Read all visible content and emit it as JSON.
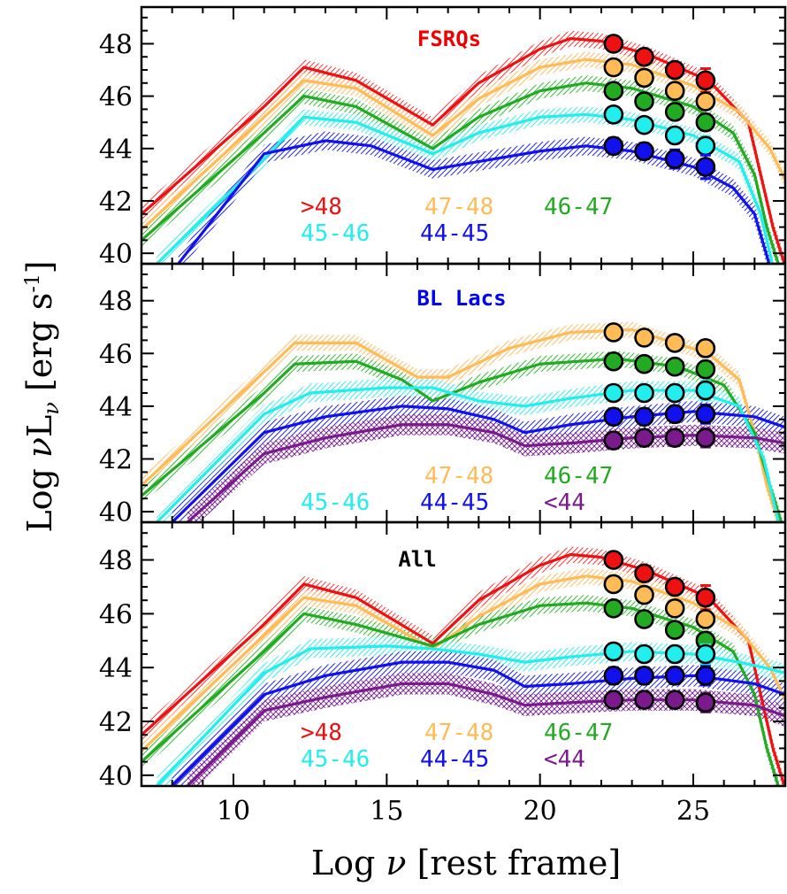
{
  "figure": {
    "xlabel_parts": [
      "Log ",
      "ν",
      " [rest frame]"
    ],
    "ylabel_parts": [
      "Log ",
      "ν",
      "L",
      "ν",
      " [erg s",
      "-1",
      "]"
    ]
  },
  "chart_data": [
    {
      "type": "line",
      "title": "FSRQs",
      "title_color": "#ee0000",
      "xlim": [
        7,
        28
      ],
      "ylim": [
        39.6,
        49.4
      ],
      "xticks": [
        10,
        15,
        20,
        25
      ],
      "yticks": [
        40,
        42,
        44,
        46,
        48
      ],
      "series": [
        {
          "name": ">48",
          "color": "#ee1111",
          "hatch": "#ee4444",
          "x": [
            7,
            11,
            12.3,
            14,
            16.5,
            18,
            20,
            21,
            22,
            23.5,
            25.5,
            26.8,
            27.2,
            27.6,
            28
          ],
          "y": [
            41.5,
            45.6,
            47.1,
            46.6,
            44.9,
            46.5,
            47.8,
            48.2,
            48.1,
            47.6,
            46.6,
            45.0,
            43.0,
            41.0,
            39.5
          ],
          "band": 0.6,
          "points": [
            {
              "x": 22.4,
              "y": 48.0,
              "err": 0.15
            },
            {
              "x": 23.4,
              "y": 47.5,
              "err": 0.2
            },
            {
              "x": 24.4,
              "y": 47.0,
              "err": 0.25
            },
            {
              "x": 25.4,
              "y": 46.6,
              "err": 0.45
            }
          ]
        },
        {
          "name": "47-48",
          "color": "#ffbb55",
          "hatch": "#ffc070",
          "x": [
            7,
            11,
            12.3,
            14,
            16.5,
            18,
            20,
            21.5,
            23,
            25,
            26.5,
            27.5,
            28
          ],
          "y": [
            40.9,
            45.2,
            46.6,
            46.3,
            44.5,
            45.9,
            47.1,
            47.4,
            47.2,
            46.4,
            45.4,
            44.0,
            42.8
          ],
          "band": 0.6,
          "points": [
            {
              "x": 22.4,
              "y": 47.1,
              "err": 0.2
            },
            {
              "x": 23.4,
              "y": 46.7,
              "err": 0.2
            },
            {
              "x": 24.4,
              "y": 46.2,
              "err": 0.25
            },
            {
              "x": 25.4,
              "y": 45.8,
              "err": 0.3
            }
          ]
        },
        {
          "name": "46-47",
          "color": "#22aa22",
          "hatch": "#44bb44",
          "x": [
            7,
            11,
            12.3,
            14,
            16.5,
            18,
            20,
            21.5,
            23,
            25,
            26.3,
            27,
            27.4,
            27.8
          ],
          "y": [
            40.5,
            44.6,
            46.0,
            45.6,
            44.0,
            45.2,
            46.2,
            46.5,
            46.3,
            45.6,
            44.6,
            43.0,
            41.0,
            39.5
          ],
          "band": 0.6,
          "points": [
            {
              "x": 22.4,
              "y": 46.2,
              "err": 0.2
            },
            {
              "x": 23.4,
              "y": 45.8,
              "err": 0.2
            },
            {
              "x": 24.4,
              "y": 45.4,
              "err": 0.25
            },
            {
              "x": 25.4,
              "y": 45.0,
              "err": 0.3
            }
          ]
        },
        {
          "name": "45-46",
          "color": "#22eeee",
          "hatch": "#44eeee",
          "x": [
            7.5,
            11,
            12.3,
            14,
            16.5,
            18,
            20,
            21.5,
            23,
            25,
            26.5,
            27.2,
            27.6
          ],
          "y": [
            39.6,
            43.6,
            45.2,
            45.0,
            43.8,
            44.6,
            45.2,
            45.3,
            45.1,
            44.5,
            43.5,
            41.5,
            39.5
          ],
          "band": 0.6,
          "points": [
            {
              "x": 22.4,
              "y": 45.3,
              "err": 0.25
            },
            {
              "x": 23.4,
              "y": 44.9,
              "err": 0.25
            },
            {
              "x": 24.4,
              "y": 44.5,
              "err": 0.3
            },
            {
              "x": 25.4,
              "y": 44.1,
              "err": 0.35
            }
          ]
        },
        {
          "name": "44-45",
          "color": "#1111ee",
          "hatch": "#3333cc",
          "x": [
            8.2,
            11,
            13,
            14.5,
            16.5,
            18,
            20,
            21.5,
            23,
            25,
            26.3,
            27,
            27.5
          ],
          "y": [
            39.6,
            43.8,
            44.3,
            44.1,
            43.2,
            43.5,
            43.9,
            44.1,
            43.9,
            43.3,
            42.5,
            41.5,
            39.5
          ],
          "band": 0.7,
          "points": [
            {
              "x": 22.4,
              "y": 44.1,
              "err": 0.3
            },
            {
              "x": 23.4,
              "y": 43.9,
              "err": 0.3
            },
            {
              "x": 24.4,
              "y": 43.6,
              "err": 0.35
            },
            {
              "x": 25.4,
              "y": 43.3,
              "err": 0.45
            }
          ]
        }
      ]
    },
    {
      "type": "line",
      "title": "BL Lacs",
      "title_color": "#0000ee",
      "xlim": [
        7,
        28
      ],
      "ylim": [
        39.6,
        49.4
      ],
      "xticks": [
        10,
        15,
        20,
        25
      ],
      "yticks": [
        40,
        42,
        44,
        46,
        48
      ],
      "series": [
        {
          "name": "47-48",
          "color": "#ffbb55",
          "hatch": "#ffc070",
          "x": [
            7,
            11,
            12,
            14,
            16,
            17,
            19,
            21,
            23,
            25.5,
            26.5,
            27,
            27.4,
            27.8
          ],
          "y": [
            41.0,
            45.3,
            46.4,
            46.4,
            45.1,
            45.1,
            46.2,
            46.8,
            46.9,
            46.0,
            45.0,
            43.0,
            41.0,
            39.5
          ],
          "band": 0.6,
          "points": [
            {
              "x": 22.4,
              "y": 46.8,
              "err": 0.2
            },
            {
              "x": 23.4,
              "y": 46.6,
              "err": 0.2
            },
            {
              "x": 24.4,
              "y": 46.4,
              "err": 0.25
            },
            {
              "x": 25.4,
              "y": 46.2,
              "err": 0.3
            }
          ]
        },
        {
          "name": "46-47",
          "color": "#22aa22",
          "hatch": "#44bb44",
          "x": [
            7,
            11,
            12,
            14,
            15.5,
            16.5,
            18,
            20,
            22.5,
            24.5,
            26,
            27,
            27.5,
            27.9
          ],
          "y": [
            40.6,
            44.5,
            45.6,
            45.7,
            45.0,
            44.2,
            44.9,
            45.6,
            45.8,
            45.5,
            44.8,
            43.0,
            41.0,
            39.5
          ],
          "band": 0.6,
          "points": [
            {
              "x": 22.4,
              "y": 45.7,
              "err": 0.2
            },
            {
              "x": 23.4,
              "y": 45.6,
              "err": 0.2
            },
            {
              "x": 24.4,
              "y": 45.5,
              "err": 0.25
            },
            {
              "x": 25.4,
              "y": 45.4,
              "err": 0.3
            }
          ]
        },
        {
          "name": "45-46",
          "color": "#22eeee",
          "hatch": "#44eeee",
          "x": [
            7.5,
            11,
            12.5,
            15,
            16.5,
            18,
            19.5,
            21,
            23,
            25,
            26.5,
            27.3,
            27.8
          ],
          "y": [
            39.6,
            43.7,
            44.5,
            44.7,
            44.7,
            44.2,
            44.0,
            44.3,
            44.6,
            44.6,
            44.0,
            42.0,
            39.5
          ],
          "band": 0.7,
          "points": [
            {
              "x": 22.4,
              "y": 44.5,
              "err": 0.25
            },
            {
              "x": 23.4,
              "y": 44.5,
              "err": 0.25
            },
            {
              "x": 24.4,
              "y": 44.5,
              "err": 0.3
            },
            {
              "x": 25.4,
              "y": 44.6,
              "err": 0.35
            }
          ]
        },
        {
          "name": "44-45",
          "color": "#1111ee",
          "hatch": "#3333cc",
          "x": [
            8,
            11,
            13,
            15.5,
            17,
            18.5,
            19.5,
            21,
            23,
            25,
            27,
            28
          ],
          "y": [
            39.6,
            43.0,
            43.6,
            44.0,
            43.9,
            43.5,
            43.0,
            43.3,
            43.6,
            43.8,
            43.6,
            43.2
          ],
          "band": 0.8,
          "points": [
            {
              "x": 22.4,
              "y": 43.6,
              "err": 0.3
            },
            {
              "x": 23.4,
              "y": 43.6,
              "err": 0.3
            },
            {
              "x": 24.4,
              "y": 43.7,
              "err": 0.3
            },
            {
              "x": 25.4,
              "y": 43.7,
              "err": 0.35
            }
          ]
        },
        {
          "name": "<44",
          "color": "#7a1a8c",
          "hatch": "#7a2a90",
          "x": [
            8.5,
            11,
            13,
            15.5,
            17,
            18.5,
            19.5,
            21,
            23,
            25,
            27,
            28
          ],
          "y": [
            39.6,
            42.2,
            42.8,
            43.3,
            43.3,
            43.0,
            42.5,
            42.6,
            42.8,
            42.9,
            42.8,
            42.6
          ],
          "band": 0.8,
          "points": [
            {
              "x": 22.4,
              "y": 42.7,
              "err": 0.3
            },
            {
              "x": 23.4,
              "y": 42.8,
              "err": 0.3
            },
            {
              "x": 24.4,
              "y": 42.8,
              "err": 0.3
            },
            {
              "x": 25.4,
              "y": 42.8,
              "err": 0.35
            }
          ]
        }
      ]
    },
    {
      "type": "line",
      "title": "All",
      "title_color": "#000000",
      "xlim": [
        7,
        28
      ],
      "ylim": [
        39.6,
        49.4
      ],
      "xticks": [
        10,
        15,
        20,
        25
      ],
      "yticks": [
        40,
        42,
        44,
        46,
        48
      ],
      "series": [
        {
          "name": ">48",
          "color": "#ee1111",
          "hatch": "#ee4444",
          "x": [
            7,
            11,
            12.3,
            14,
            16.5,
            18,
            20,
            21,
            22,
            23.5,
            25.5,
            26.8,
            27.2,
            27.6,
            28
          ],
          "y": [
            41.5,
            45.6,
            47.1,
            46.6,
            44.9,
            46.5,
            47.8,
            48.2,
            48.1,
            47.6,
            46.6,
            45.0,
            43.0,
            41.0,
            39.5
          ],
          "band": 0.6,
          "points": [
            {
              "x": 22.4,
              "y": 48.0,
              "err": 0.15
            },
            {
              "x": 23.4,
              "y": 47.5,
              "err": 0.2
            },
            {
              "x": 24.4,
              "y": 47.0,
              "err": 0.25
            },
            {
              "x": 25.4,
              "y": 46.6,
              "err": 0.45
            }
          ]
        },
        {
          "name": "47-48",
          "color": "#ffbb55",
          "hatch": "#ffc070",
          "x": [
            7,
            11,
            12.3,
            14,
            16.5,
            18,
            20,
            21.5,
            23,
            25,
            26.5,
            27.5,
            28
          ],
          "y": [
            40.9,
            45.2,
            46.6,
            46.3,
            44.7,
            45.9,
            47.1,
            47.4,
            47.2,
            46.4,
            45.4,
            44.0,
            42.8
          ],
          "band": 0.6,
          "points": [
            {
              "x": 22.4,
              "y": 47.1,
              "err": 0.2
            },
            {
              "x": 23.4,
              "y": 46.7,
              "err": 0.2
            },
            {
              "x": 24.4,
              "y": 46.2,
              "err": 0.25
            },
            {
              "x": 25.4,
              "y": 45.8,
              "err": 0.3
            }
          ]
        },
        {
          "name": "46-47",
          "color": "#22aa22",
          "hatch": "#44bb44",
          "x": [
            7,
            11,
            12.3,
            14,
            16.5,
            18,
            20,
            21.5,
            23,
            25,
            26.3,
            27,
            27.4,
            27.8
          ],
          "y": [
            40.5,
            44.6,
            46.0,
            45.6,
            44.8,
            45.6,
            46.3,
            46.4,
            46.2,
            45.5,
            44.6,
            43.0,
            41.0,
            39.5
          ],
          "band": 0.6,
          "points": [
            {
              "x": 22.4,
              "y": 46.2,
              "err": 0.2
            },
            {
              "x": 23.4,
              "y": 45.8,
              "err": 0.2
            },
            {
              "x": 24.4,
              "y": 45.4,
              "err": 0.25
            },
            {
              "x": 25.4,
              "y": 45.0,
              "err": 0.3
            }
          ]
        },
        {
          "name": "45-46",
          "color": "#22eeee",
          "hatch": "#44eeee",
          "x": [
            7.5,
            11,
            12.5,
            15,
            16.5,
            18,
            19.5,
            21,
            23,
            25,
            26.5,
            27.3,
            28
          ],
          "y": [
            39.6,
            43.8,
            44.7,
            44.8,
            44.7,
            44.5,
            44.2,
            44.4,
            44.6,
            44.5,
            44.2,
            44.0,
            43.8
          ],
          "band": 0.7,
          "points": [
            {
              "x": 22.4,
              "y": 44.6,
              "err": 0.25
            },
            {
              "x": 23.4,
              "y": 44.5,
              "err": 0.25
            },
            {
              "x": 24.4,
              "y": 44.5,
              "err": 0.3
            },
            {
              "x": 25.4,
              "y": 44.5,
              "err": 0.35
            }
          ]
        },
        {
          "name": "44-45",
          "color": "#1111ee",
          "hatch": "#3333cc",
          "x": [
            8,
            11,
            13,
            15.5,
            17,
            18.5,
            19.5,
            21,
            23,
            25,
            27,
            28
          ],
          "y": [
            39.6,
            43.0,
            43.7,
            44.2,
            44.2,
            43.9,
            43.3,
            43.4,
            43.6,
            43.7,
            43.4,
            43.0
          ],
          "band": 0.8,
          "points": [
            {
              "x": 22.4,
              "y": 43.7,
              "err": 0.3
            },
            {
              "x": 23.4,
              "y": 43.7,
              "err": 0.3
            },
            {
              "x": 24.4,
              "y": 43.7,
              "err": 0.3
            },
            {
              "x": 25.4,
              "y": 43.7,
              "err": 0.35
            }
          ]
        },
        {
          "name": "<44",
          "color": "#7a1a8c",
          "hatch": "#7a2a90",
          "x": [
            8.5,
            11,
            13,
            15.5,
            17,
            18.5,
            19.5,
            21,
            23,
            25,
            27,
            28
          ],
          "y": [
            39.6,
            42.4,
            42.9,
            43.4,
            43.4,
            43.0,
            42.6,
            42.7,
            42.8,
            42.8,
            42.6,
            42.2
          ],
          "band": 0.8,
          "points": [
            {
              "x": 22.4,
              "y": 42.8,
              "err": 0.3
            },
            {
              "x": 23.4,
              "y": 42.8,
              "err": 0.3
            },
            {
              "x": 24.4,
              "y": 42.8,
              "err": 0.3
            },
            {
              "x": 25.4,
              "y": 42.7,
              "err": 0.35
            }
          ]
        }
      ]
    }
  ]
}
